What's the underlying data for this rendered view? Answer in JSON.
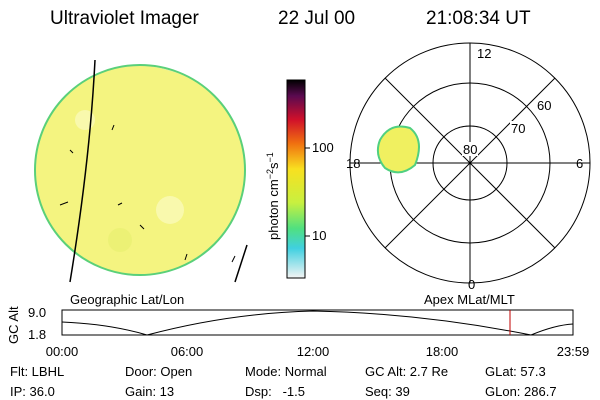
{
  "header": {
    "title": "Ultraviolet Imager",
    "date": "22 Jul 00",
    "time": "21:08:34 UT"
  },
  "colorbar": {
    "label_parts": [
      "photon cm",
      "−2",
      "s",
      "−1"
    ],
    "tick_labels": [
      "100",
      "10"
    ]
  },
  "left_panel": {
    "label": "Geographic Lat/Lon"
  },
  "right_panel": {
    "label": "Apex MLat/MLT",
    "mlt_labels": [
      "12",
      "18",
      "6",
      "0"
    ],
    "mlat_labels": [
      "60",
      "70",
      "80"
    ]
  },
  "altitude_plot": {
    "axis_title": "GC Alt",
    "y_labels": [
      "9.0",
      "1.8"
    ],
    "x_labels": [
      "00:00",
      "06:00",
      "12:00",
      "18:00",
      "23:59"
    ]
  },
  "info": {
    "rows": [
      [
        "Flt: LBHL",
        "Door: Open",
        "Mode: Normal",
        "GC Alt: 2.7 Re",
        "GLat: 57.3"
      ],
      [
        "IP: 36.0",
        "Gain: 13",
        "Dsp:   -1.5",
        "Seq: 39",
        "GLon: 286.7"
      ]
    ]
  }
}
